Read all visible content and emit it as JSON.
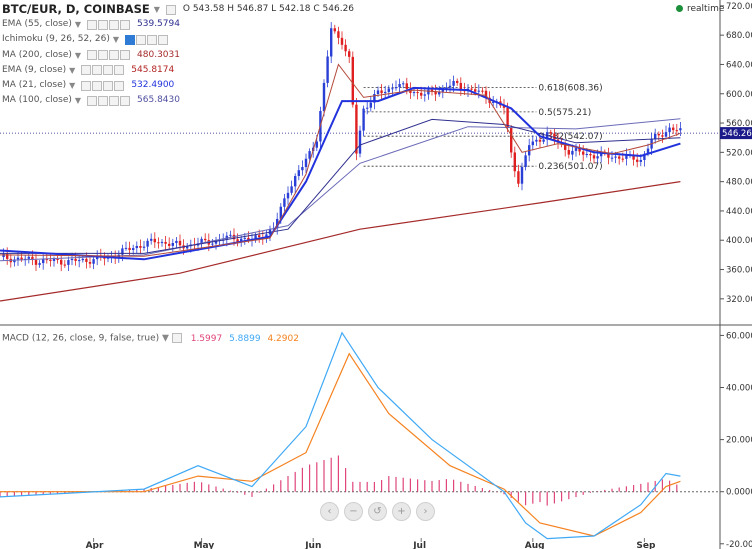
{
  "header": {
    "symbol": "BTC/EUR, D, COINBASE",
    "ohlc": "O 543.58 H 546.87 L 542.18 C 546.26",
    "realtime_label": "realtime"
  },
  "indicators": [
    {
      "label": "EMA (55, close)",
      "value": "539.5794",
      "color": "#2f2f8f"
    },
    {
      "label": "Ichimoku (9, 26, 52, 26)",
      "value": "",
      "color": "#333333"
    },
    {
      "label": "MA (200, close)",
      "value": "480.3031",
      "color": "#a52a2a"
    },
    {
      "label": "EMA (9, close)",
      "value": "545.8174",
      "color": "#b22222"
    },
    {
      "label": "MA (21, close)",
      "value": "532.4900",
      "color": "#2233dd"
    },
    {
      "label": "MA (100, close)",
      "value": "565.8430",
      "color": "#5050a0"
    }
  ],
  "macd": {
    "label": "MACD (12, 26, close, 9, false, true)",
    "hist_value": "1.5997",
    "macd_value": "5.8899",
    "signal_value": "4.2902",
    "hist_color": "#e0457b",
    "macd_color": "#3fa9f5",
    "signal_color": "#f58220"
  },
  "chart_data": [
    {
      "type": "candlestick",
      "title": "BTC/EUR, D, COINBASE",
      "ylim": [
        287,
        728
      ],
      "y_ticks": [
        "720.00",
        "680.00",
        "640.00",
        "600.00",
        "560.00",
        "520.00",
        "480.00",
        "440.00",
        "400.00",
        "360.00",
        "320.00"
      ],
      "last_price": "546.26",
      "x_labels": [
        "Apr",
        "May",
        "Jun",
        "Jul",
        "Aug",
        "Sep"
      ],
      "fib_levels": [
        {
          "label": "0.618(608.36)",
          "value": 608.36
        },
        {
          "label": "0.5(575.21)",
          "value": 575.21
        },
        {
          "label": "0.382(542.07)",
          "value": 542.07
        },
        {
          "label": "0.236(501.07)",
          "value": 501.07
        }
      ],
      "close_series": [
        {
          "day": 0,
          "close": 377
        },
        {
          "day": 10,
          "close": 372
        },
        {
          "day": 20,
          "close": 371
        },
        {
          "day": 30,
          "close": 376
        },
        {
          "day": 38,
          "close": 392
        },
        {
          "day": 44,
          "close": 399
        },
        {
          "day": 50,
          "close": 392
        },
        {
          "day": 58,
          "close": 398
        },
        {
          "day": 65,
          "close": 404
        },
        {
          "day": 70,
          "close": 400
        },
        {
          "day": 76,
          "close": 415
        },
        {
          "day": 80,
          "close": 470
        },
        {
          "day": 84,
          "close": 500
        },
        {
          "day": 88,
          "close": 540
        },
        {
          "day": 90,
          "close": 610
        },
        {
          "day": 92,
          "close": 690
        },
        {
          "day": 95,
          "close": 672
        },
        {
          "day": 97,
          "close": 645
        },
        {
          "day": 99,
          "close": 520
        },
        {
          "day": 101,
          "close": 580
        },
        {
          "day": 105,
          "close": 600
        },
        {
          "day": 110,
          "close": 612
        },
        {
          "day": 118,
          "close": 598
        },
        {
          "day": 126,
          "close": 613
        },
        {
          "day": 134,
          "close": 600
        },
        {
          "day": 140,
          "close": 580
        },
        {
          "day": 142,
          "close": 520
        },
        {
          "day": 144,
          "close": 480
        },
        {
          "day": 147,
          "close": 530
        },
        {
          "day": 152,
          "close": 545
        },
        {
          "day": 158,
          "close": 522
        },
        {
          "day": 165,
          "close": 516
        },
        {
          "day": 172,
          "close": 514
        },
        {
          "day": 178,
          "close": 510
        },
        {
          "day": 181,
          "close": 536
        },
        {
          "day": 186,
          "close": 553
        },
        {
          "day": 189,
          "close": 548
        }
      ],
      "ma200": [
        {
          "day": 0,
          "value": 317
        },
        {
          "day": 50,
          "value": 355
        },
        {
          "day": 100,
          "value": 415
        },
        {
          "day": 150,
          "value": 451
        },
        {
          "day": 189,
          "value": 480
        }
      ],
      "ma100": [
        {
          "day": 0,
          "value": 372
        },
        {
          "day": 40,
          "value": 380
        },
        {
          "day": 80,
          "value": 420
        },
        {
          "day": 100,
          "value": 505
        },
        {
          "day": 130,
          "value": 555
        },
        {
          "day": 160,
          "value": 552
        },
        {
          "day": 189,
          "value": 566
        }
      ],
      "ema55": [
        {
          "day": 0,
          "value": 382
        },
        {
          "day": 40,
          "value": 382
        },
        {
          "day": 80,
          "value": 415
        },
        {
          "day": 100,
          "value": 530
        },
        {
          "day": 120,
          "value": 565
        },
        {
          "day": 140,
          "value": 558
        },
        {
          "day": 160,
          "value": 533
        },
        {
          "day": 189,
          "value": 540
        }
      ],
      "ma21": [
        {
          "day": 0,
          "value": 386
        },
        {
          "day": 40,
          "value": 374
        },
        {
          "day": 75,
          "value": 405
        },
        {
          "day": 85,
          "value": 480
        },
        {
          "day": 95,
          "value": 590
        },
        {
          "day": 105,
          "value": 590
        },
        {
          "day": 115,
          "value": 608
        },
        {
          "day": 130,
          "value": 605
        },
        {
          "day": 142,
          "value": 580
        },
        {
          "day": 150,
          "value": 542
        },
        {
          "day": 165,
          "value": 520
        },
        {
          "day": 178,
          "value": 515
        },
        {
          "day": 189,
          "value": 532
        }
      ],
      "ema9": [
        {
          "day": 0,
          "value": 380
        },
        {
          "day": 40,
          "value": 378
        },
        {
          "day": 75,
          "value": 403
        },
        {
          "day": 85,
          "value": 490
        },
        {
          "day": 94,
          "value": 640
        },
        {
          "day": 101,
          "value": 595
        },
        {
          "day": 115,
          "value": 605
        },
        {
          "day": 135,
          "value": 598
        },
        {
          "day": 145,
          "value": 520
        },
        {
          "day": 155,
          "value": 532
        },
        {
          "day": 170,
          "value": 518
        },
        {
          "day": 180,
          "value": 530
        },
        {
          "day": 189,
          "value": 546
        }
      ]
    },
    {
      "type": "line",
      "title": "MACD (12, 26, close, 9, false, true)",
      "ylim": [
        -22,
        64
      ],
      "y_ticks": [
        "60.0000",
        "40.0000",
        "20.0000",
        "0.0000",
        "-20.0000"
      ],
      "series": [
        {
          "name": "MACD",
          "points": [
            {
              "day": 0,
              "value": -2
            },
            {
              "day": 40,
              "value": 1
            },
            {
              "day": 55,
              "value": 10
            },
            {
              "day": 70,
              "value": 2
            },
            {
              "day": 85,
              "value": 25
            },
            {
              "day": 95,
              "value": 61
            },
            {
              "day": 105,
              "value": 40
            },
            {
              "day": 120,
              "value": 20
            },
            {
              "day": 140,
              "value": 0
            },
            {
              "day": 146,
              "value": -12
            },
            {
              "day": 152,
              "value": -18
            },
            {
              "day": 165,
              "value": -17
            },
            {
              "day": 178,
              "value": -5
            },
            {
              "day": 185,
              "value": 7
            },
            {
              "day": 189,
              "value": 6
            }
          ]
        },
        {
          "name": "Signal",
          "points": [
            {
              "day": 0,
              "value": 0
            },
            {
              "day": 40,
              "value": 0
            },
            {
              "day": 55,
              "value": 6
            },
            {
              "day": 70,
              "value": 4
            },
            {
              "day": 85,
              "value": 15
            },
            {
              "day": 97,
              "value": 53
            },
            {
              "day": 108,
              "value": 30
            },
            {
              "day": 125,
              "value": 10
            },
            {
              "day": 140,
              "value": 1
            },
            {
              "day": 150,
              "value": -12
            },
            {
              "day": 165,
              "value": -17
            },
            {
              "day": 178,
              "value": -8
            },
            {
              "day": 185,
              "value": 2
            },
            {
              "day": 189,
              "value": 4
            }
          ]
        }
      ],
      "histogram": [
        {
          "day": 88,
          "value": 12
        },
        {
          "day": 92,
          "value": 10
        },
        {
          "day": 98,
          "value": -10
        },
        {
          "day": 101,
          "value": -12
        },
        {
          "day": 146,
          "value": -9
        },
        {
          "day": 150,
          "value": -3
        },
        {
          "day": 182,
          "value": 5
        },
        {
          "day": 187,
          "value": 3
        }
      ]
    }
  ]
}
